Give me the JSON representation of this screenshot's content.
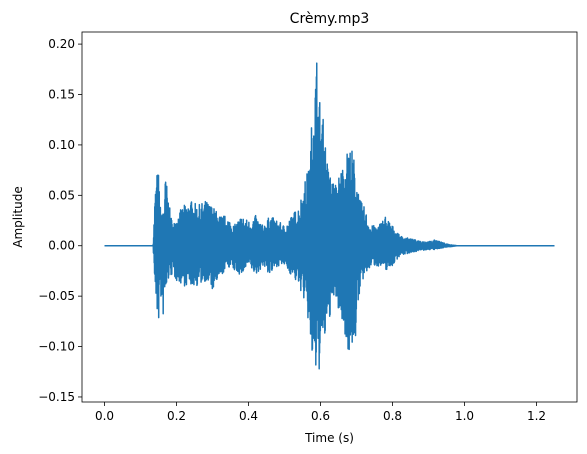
{
  "chart_data": {
    "type": "line",
    "title": "Crèmy.mp3",
    "xlabel": "Time (s)",
    "ylabel": "Amplitude",
    "xlim": [
      -0.0625,
      1.3125
    ],
    "ylim": [
      -0.155,
      0.212
    ],
    "xticks": [
      0.0,
      0.2,
      0.4,
      0.6,
      0.8,
      1.0,
      1.2
    ],
    "xtick_labels": [
      "0.0",
      "0.2",
      "0.4",
      "0.6",
      "0.8",
      "1.0",
      "1.2"
    ],
    "yticks": [
      -0.15,
      -0.1,
      -0.05,
      0.0,
      0.05,
      0.1,
      0.15,
      0.2
    ],
    "ytick_labels": [
      "−0.15",
      "−0.10",
      "−0.05",
      "0.00",
      "0.05",
      "0.10",
      "0.15",
      "0.20"
    ],
    "grid": false,
    "series": [
      {
        "color": "#1f77b4",
        "envelope": {
          "t": [
            0.0,
            0.135,
            0.14,
            0.145,
            0.15,
            0.155,
            0.16,
            0.17,
            0.18,
            0.19,
            0.2,
            0.22,
            0.24,
            0.26,
            0.28,
            0.3,
            0.32,
            0.34,
            0.36,
            0.38,
            0.4,
            0.42,
            0.44,
            0.46,
            0.48,
            0.5,
            0.52,
            0.54,
            0.56,
            0.57,
            0.58,
            0.585,
            0.59,
            0.595,
            0.6,
            0.61,
            0.62,
            0.64,
            0.66,
            0.67,
            0.68,
            0.69,
            0.7,
            0.71,
            0.72,
            0.74,
            0.76,
            0.78,
            0.8,
            0.82,
            0.84,
            0.86,
            0.88,
            0.9,
            0.92,
            0.94,
            0.96,
            0.98,
            1.0,
            1.25
          ],
          "max": [
            0.0,
            0.0,
            0.05,
            0.073,
            0.074,
            0.04,
            0.03,
            0.07,
            0.04,
            0.02,
            0.03,
            0.04,
            0.045,
            0.04,
            0.045,
            0.04,
            0.03,
            0.03,
            0.02,
            0.03,
            0.025,
            0.03,
            0.02,
            0.03,
            0.025,
            0.02,
            0.03,
            0.04,
            0.07,
            0.08,
            0.16,
            0.17,
            0.195,
            0.15,
            0.145,
            0.12,
            0.08,
            0.06,
            0.08,
            0.09,
            0.1,
            0.095,
            0.07,
            0.045,
            0.04,
            0.02,
            0.02,
            0.03,
            0.02,
            0.01,
            0.008,
            0.006,
            0.005,
            0.004,
            0.006,
            0.003,
            0.001,
            0.0,
            0.0,
            0.0
          ],
          "min": [
            0.0,
            0.0,
            -0.04,
            -0.068,
            -0.08,
            -0.04,
            -0.08,
            -0.05,
            -0.03,
            -0.03,
            -0.035,
            -0.04,
            -0.04,
            -0.04,
            -0.035,
            -0.045,
            -0.035,
            -0.02,
            -0.025,
            -0.03,
            -0.02,
            -0.03,
            -0.02,
            -0.03,
            -0.02,
            -0.02,
            -0.03,
            -0.04,
            -0.06,
            -0.09,
            -0.13,
            -0.137,
            -0.12,
            -0.13,
            -0.11,
            -0.1,
            -0.08,
            -0.05,
            -0.08,
            -0.09,
            -0.11,
            -0.1,
            -0.09,
            -0.04,
            -0.035,
            -0.02,
            -0.02,
            -0.025,
            -0.02,
            -0.01,
            -0.008,
            -0.006,
            -0.005,
            -0.004,
            -0.004,
            -0.002,
            -0.001,
            0.0,
            0.0,
            0.0
          ]
        }
      }
    ]
  }
}
